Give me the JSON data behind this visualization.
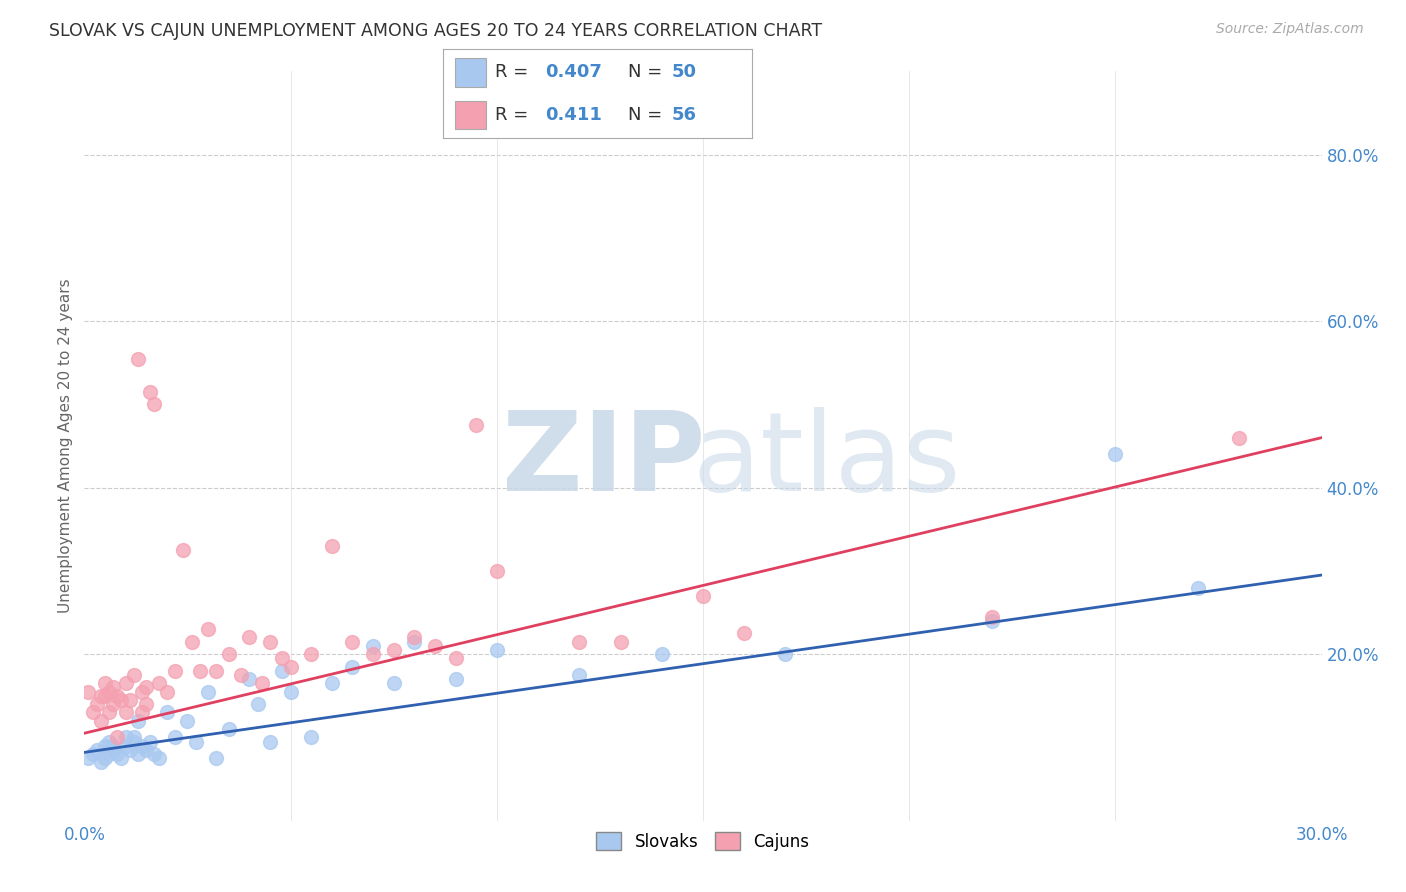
{
  "title": "SLOVAK VS CAJUN UNEMPLOYMENT AMONG AGES 20 TO 24 YEARS CORRELATION CHART",
  "source": "Source: ZipAtlas.com",
  "ylabel": "Unemployment Among Ages 20 to 24 years",
  "xlim": [
    0.0,
    0.3
  ],
  "ylim": [
    0.0,
    0.9
  ],
  "xtick_positions": [
    0.0,
    0.05,
    0.1,
    0.15,
    0.2,
    0.25,
    0.3
  ],
  "xtick_labels": [
    "0.0%",
    "",
    "",
    "",
    "",
    "",
    "30.0%"
  ],
  "yticks_right": [
    0.2,
    0.4,
    0.6,
    0.8
  ],
  "ytick_labels_right": [
    "20.0%",
    "40.0%",
    "60.0%",
    "80.0%"
  ],
  "slovak_color": "#a8c8f0",
  "cajun_color": "#f4a0b0",
  "slovak_line_color": "#3060b0",
  "cajun_line_color": "#e04060",
  "slovak_R": 0.407,
  "slovak_N": 50,
  "cajun_R": 0.411,
  "cajun_N": 56,
  "legend_label_slovak": "Slovaks",
  "legend_label_cajun": "Cajuns",
  "background_color": "#ffffff",
  "slovak_x": [
    0.001,
    0.002,
    0.003,
    0.004,
    0.005,
    0.005,
    0.006,
    0.006,
    0.007,
    0.007,
    0.008,
    0.009,
    0.01,
    0.01,
    0.011,
    0.012,
    0.012,
    0.013,
    0.013,
    0.014,
    0.015,
    0.016,
    0.017,
    0.018,
    0.02,
    0.022,
    0.025,
    0.027,
    0.03,
    0.032,
    0.035,
    0.04,
    0.042,
    0.045,
    0.048,
    0.05,
    0.055,
    0.06,
    0.065,
    0.07,
    0.075,
    0.08,
    0.09,
    0.1,
    0.12,
    0.14,
    0.17,
    0.22,
    0.25,
    0.27
  ],
  "slovak_y": [
    0.075,
    0.08,
    0.085,
    0.07,
    0.09,
    0.075,
    0.095,
    0.08,
    0.09,
    0.085,
    0.08,
    0.075,
    0.1,
    0.09,
    0.085,
    0.1,
    0.095,
    0.12,
    0.08,
    0.09,
    0.085,
    0.095,
    0.08,
    0.075,
    0.13,
    0.1,
    0.12,
    0.095,
    0.155,
    0.075,
    0.11,
    0.17,
    0.14,
    0.095,
    0.18,
    0.155,
    0.1,
    0.165,
    0.185,
    0.21,
    0.165,
    0.215,
    0.17,
    0.205,
    0.175,
    0.2,
    0.2,
    0.24,
    0.44,
    0.28
  ],
  "cajun_x": [
    0.001,
    0.002,
    0.003,
    0.004,
    0.004,
    0.005,
    0.005,
    0.006,
    0.006,
    0.007,
    0.007,
    0.008,
    0.008,
    0.009,
    0.01,
    0.01,
    0.011,
    0.012,
    0.013,
    0.014,
    0.014,
    0.015,
    0.015,
    0.016,
    0.017,
    0.018,
    0.02,
    0.022,
    0.024,
    0.026,
    0.028,
    0.03,
    0.032,
    0.035,
    0.038,
    0.04,
    0.043,
    0.045,
    0.048,
    0.05,
    0.055,
    0.06,
    0.065,
    0.07,
    0.075,
    0.08,
    0.085,
    0.09,
    0.095,
    0.1,
    0.12,
    0.13,
    0.15,
    0.16,
    0.22,
    0.28
  ],
  "cajun_y": [
    0.155,
    0.13,
    0.14,
    0.15,
    0.12,
    0.15,
    0.165,
    0.13,
    0.155,
    0.14,
    0.16,
    0.15,
    0.1,
    0.145,
    0.13,
    0.165,
    0.145,
    0.175,
    0.555,
    0.155,
    0.13,
    0.16,
    0.14,
    0.515,
    0.5,
    0.165,
    0.155,
    0.18,
    0.325,
    0.215,
    0.18,
    0.23,
    0.18,
    0.2,
    0.175,
    0.22,
    0.165,
    0.215,
    0.195,
    0.185,
    0.2,
    0.33,
    0.215,
    0.2,
    0.205,
    0.22,
    0.21,
    0.195,
    0.475,
    0.3,
    0.215,
    0.215,
    0.27,
    0.225,
    0.245,
    0.46
  ],
  "slovak_trend": [
    0.082,
    0.295
  ],
  "cajun_trend": [
    0.105,
    0.46
  ]
}
